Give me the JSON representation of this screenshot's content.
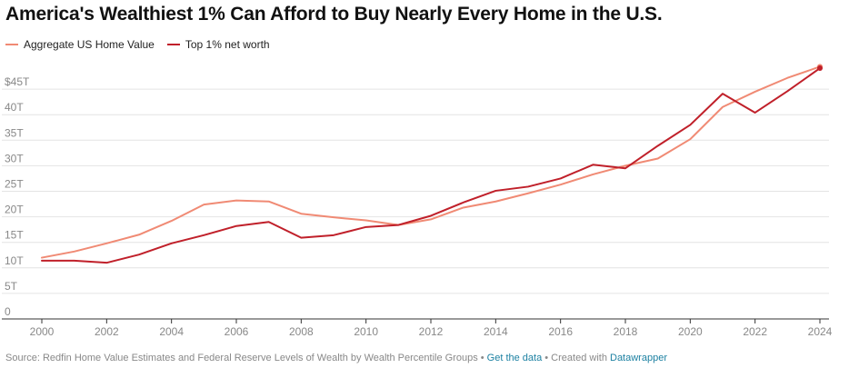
{
  "title": "America's Wealthiest 1% Can Afford to Buy Nearly Every Home in the U.S.",
  "legend": [
    {
      "label": "Aggregate US Home Value",
      "color": "#f08a74"
    },
    {
      "label": "Top 1% net worth",
      "color": "#c0202a"
    }
  ],
  "footer": {
    "source": "Source: Redfin Home Value Estimates and Federal Reserve Levels of Wealth by Wealth Percentile Groups",
    "sep1": " • ",
    "get_data": "Get the data",
    "sep2": " • Created with ",
    "datawrapper": "Datawrapper"
  },
  "chart_data": {
    "type": "line",
    "x": [
      2000,
      2001,
      2002,
      2003,
      2004,
      2005,
      2006,
      2007,
      2008,
      2009,
      2010,
      2011,
      2012,
      2013,
      2014,
      2015,
      2016,
      2017,
      2018,
      2019,
      2020,
      2021,
      2022,
      2023,
      2024
    ],
    "series": [
      {
        "name": "Aggregate US Home Value",
        "color": "#f08a74",
        "values": [
          12.0,
          13.2,
          14.8,
          16.5,
          19.2,
          22.4,
          23.2,
          23.0,
          20.6,
          19.9,
          19.3,
          18.4,
          19.5,
          21.8,
          23.0,
          24.6,
          26.3,
          28.3,
          30.0,
          31.4,
          35.2,
          41.5,
          44.5,
          47.2,
          49.4
        ]
      },
      {
        "name": "Top 1% net worth",
        "color": "#c0202a",
        "values": [
          11.4,
          11.4,
          11.0,
          12.6,
          14.8,
          16.4,
          18.2,
          19.0,
          15.9,
          16.4,
          18.0,
          18.4,
          20.2,
          22.8,
          25.1,
          25.9,
          27.5,
          30.2,
          29.5,
          33.9,
          38.0,
          44.1,
          40.4,
          44.6,
          49.1
        ]
      }
    ],
    "y_ticks": [
      0,
      5,
      10,
      15,
      20,
      25,
      30,
      35,
      40,
      45
    ],
    "y_tick_labels": [
      "0",
      "5T",
      "10T",
      "15T",
      "20T",
      "25T",
      "30T",
      "35T",
      "40T",
      "$45T"
    ],
    "x_ticks": [
      2000,
      2002,
      2004,
      2006,
      2008,
      2010,
      2012,
      2014,
      2016,
      2018,
      2020,
      2022,
      2024
    ],
    "x_tick_labels": [
      "2000",
      "2002",
      "2004",
      "2006",
      "2008",
      "2010",
      "2012",
      "2014",
      "2016",
      "2018",
      "2020",
      "2022",
      "2024"
    ],
    "xlabel": "",
    "ylabel": "",
    "xlim": [
      2000,
      2024
    ],
    "ylim": [
      0,
      50
    ],
    "grid": true,
    "legend_position": "top-left"
  }
}
